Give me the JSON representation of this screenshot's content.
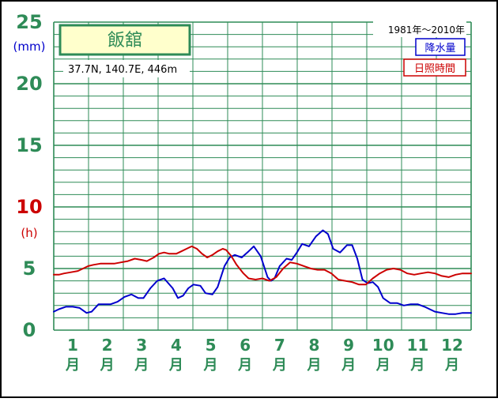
{
  "chart_data": {
    "type": "line",
    "station": {
      "name": "飯舘",
      "location": "37.7N,  140.7E,  446m"
    },
    "period": "1981年〜2010年",
    "x_ticks": [
      {
        "num": "1",
        "unit": "月"
      },
      {
        "num": "2",
        "unit": "月"
      },
      {
        "num": "3",
        "unit": "月"
      },
      {
        "num": "4",
        "unit": "月"
      },
      {
        "num": "5",
        "unit": "月"
      },
      {
        "num": "6",
        "unit": "月"
      },
      {
        "num": "7",
        "unit": "月"
      },
      {
        "num": "8",
        "unit": "月"
      },
      {
        "num": "9",
        "unit": "月"
      },
      {
        "num": "10",
        "unit": "月"
      },
      {
        "num": "11",
        "unit": "月"
      },
      {
        "num": "12",
        "unit": "月"
      }
    ],
    "y_ticks": [
      "0",
      "5",
      "10",
      "15",
      "20",
      "25"
    ],
    "ylim": [
      0,
      25
    ],
    "xlim": [
      0.45,
      12.55
    ],
    "y_units": {
      "precipitation": "(mm)",
      "sunshine": "(h)"
    },
    "grid": true,
    "legend_position": "top-right",
    "colors": {
      "grid": "#2e8b57",
      "axis_text": "#2e8b57",
      "precipitation": "#0000cc",
      "sunshine": "#cc0000",
      "station_box_fill": "#ffffcc",
      "frame": "#000000"
    },
    "series": [
      {
        "name": "降水量",
        "color": "#0000cc",
        "x": [
          0.45,
          0.6,
          0.8,
          1.0,
          1.2,
          1.4,
          1.55,
          1.75,
          1.95,
          2.1,
          2.3,
          2.5,
          2.7,
          2.9,
          3.05,
          3.25,
          3.45,
          3.65,
          3.9,
          4.05,
          4.2,
          4.35,
          4.5,
          4.7,
          4.85,
          5.05,
          5.2,
          5.4,
          5.55,
          5.7,
          5.9,
          6.1,
          6.25,
          6.45,
          6.65,
          6.75,
          6.85,
          7.0,
          7.2,
          7.35,
          7.5,
          7.65,
          7.85,
          8.05,
          8.25,
          8.4,
          8.55,
          8.75,
          8.95,
          9.1,
          9.25,
          9.4,
          9.55,
          9.7,
          9.85,
          10.0,
          10.2,
          10.4,
          10.6,
          10.8,
          11.0,
          11.2,
          11.35,
          11.5,
          11.7,
          11.9,
          12.1,
          12.3,
          12.55
        ],
        "values": [
          1.5,
          1.7,
          1.9,
          1.9,
          1.8,
          1.4,
          1.5,
          2.1,
          2.1,
          2.1,
          2.3,
          2.7,
          2.9,
          2.6,
          2.6,
          3.4,
          4.0,
          4.2,
          3.4,
          2.6,
          2.8,
          3.4,
          3.7,
          3.6,
          3.0,
          2.9,
          3.5,
          5.2,
          5.9,
          6.1,
          5.9,
          6.4,
          6.8,
          6.0,
          4.3,
          4.0,
          4.2,
          5.2,
          5.8,
          5.7,
          6.3,
          7.0,
          6.8,
          7.6,
          8.1,
          7.8,
          6.6,
          6.3,
          6.9,
          6.9,
          5.8,
          4.1,
          3.8,
          3.9,
          3.5,
          2.6,
          2.2,
          2.2,
          2.0,
          2.1,
          2.1,
          1.9,
          1.7,
          1.5,
          1.4,
          1.3,
          1.3,
          1.4,
          1.4
        ]
      },
      {
        "name": "日照時間",
        "color": "#cc0000",
        "x": [
          0.45,
          0.6,
          0.75,
          0.95,
          1.15,
          1.3,
          1.45,
          1.6,
          1.8,
          2.0,
          2.2,
          2.4,
          2.6,
          2.8,
          3.0,
          3.15,
          3.35,
          3.5,
          3.65,
          3.8,
          4.0,
          4.15,
          4.3,
          4.45,
          4.6,
          4.75,
          4.9,
          5.05,
          5.2,
          5.35,
          5.45,
          5.6,
          5.75,
          5.95,
          6.1,
          6.3,
          6.5,
          6.7,
          6.9,
          7.1,
          7.3,
          7.5,
          7.7,
          7.9,
          8.1,
          8.3,
          8.5,
          8.7,
          8.9,
          9.1,
          9.3,
          9.5,
          9.7,
          9.9,
          10.1,
          10.3,
          10.5,
          10.7,
          10.9,
          11.1,
          11.3,
          11.5,
          11.7,
          11.9,
          12.1,
          12.3,
          12.55
        ],
        "values": [
          4.5,
          4.5,
          4.6,
          4.7,
          4.8,
          5.0,
          5.2,
          5.3,
          5.4,
          5.4,
          5.4,
          5.5,
          5.6,
          5.8,
          5.7,
          5.6,
          5.9,
          6.2,
          6.3,
          6.2,
          6.2,
          6.4,
          6.6,
          6.8,
          6.6,
          6.2,
          5.9,
          6.1,
          6.4,
          6.6,
          6.5,
          6.0,
          5.3,
          4.6,
          4.2,
          4.1,
          4.2,
          4.0,
          4.3,
          5.0,
          5.5,
          5.4,
          5.2,
          5.0,
          4.9,
          4.9,
          4.6,
          4.1,
          4.0,
          3.9,
          3.7,
          3.7,
          4.2,
          4.6,
          4.9,
          5.0,
          4.9,
          4.6,
          4.5,
          4.6,
          4.7,
          4.6,
          4.4,
          4.3,
          4.5,
          4.6,
          4.6
        ]
      }
    ]
  }
}
